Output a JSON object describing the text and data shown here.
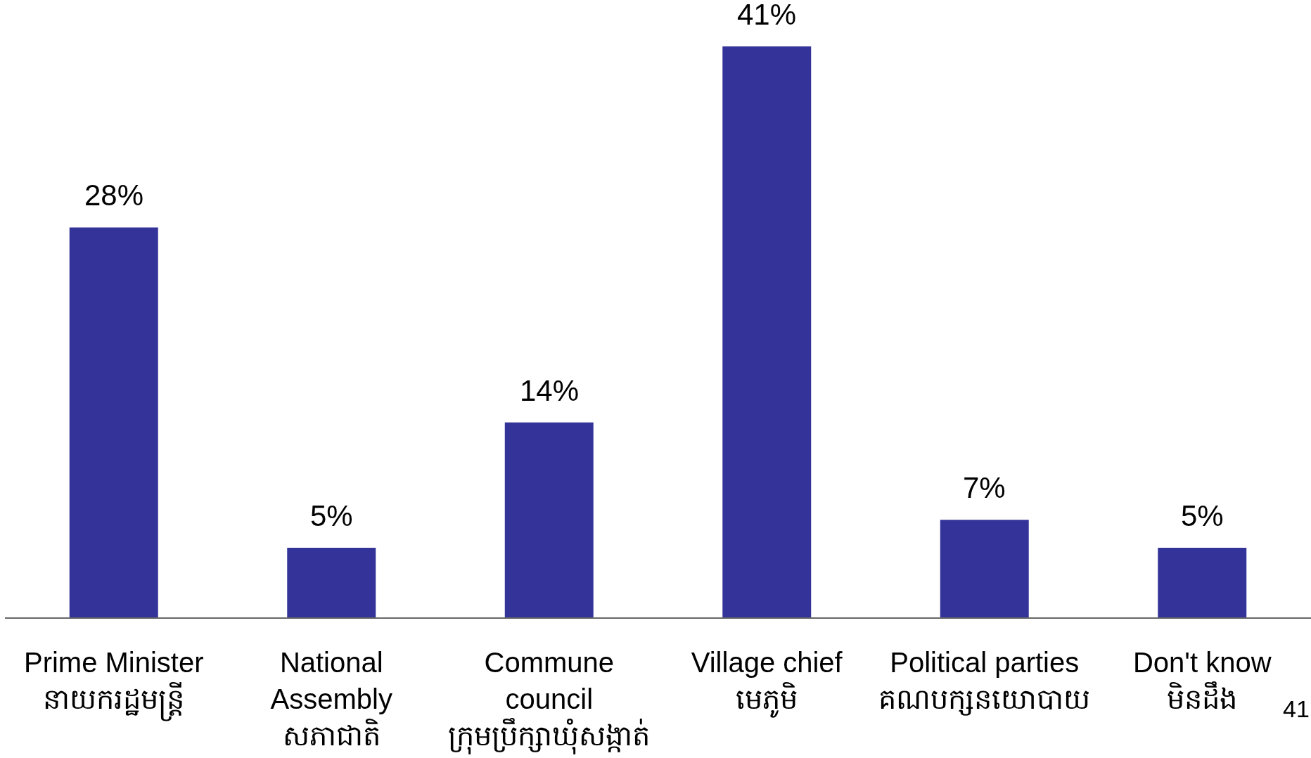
{
  "chart_data": {
    "type": "bar",
    "categories": [
      "Prime Minister\nនាយករដ្ឋមន្ត្រី",
      "National\nAssembly\nសភាជាតិ",
      "Commune\ncouncil\nក្រុមប្រឹក្សាឃុំសង្កាត់",
      "Village chief\nមេភូមិ",
      "Political parties\nគណបក្សនយោបាយ",
      "Don't know\nមិនដឹង"
    ],
    "values": [
      28,
      5,
      14,
      41,
      7,
      5
    ],
    "color": "#333399",
    "value_labels": [
      "28%",
      "5%",
      "14%",
      "41%",
      "7%",
      "5%"
    ],
    "tick_labels": "x",
    "annotations": [
      "41"
    ]
  }
}
